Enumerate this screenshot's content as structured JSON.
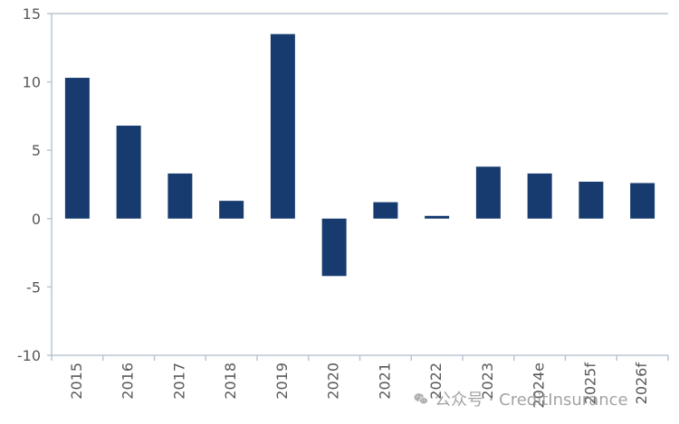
{
  "chart_data": {
    "type": "bar",
    "title": "",
    "xlabel": "",
    "ylabel": "",
    "categories": [
      "2015",
      "2016",
      "2017",
      "2018",
      "2019",
      "2020",
      "2021",
      "2022",
      "2023",
      "2024e",
      "2025f",
      "2026f"
    ],
    "values": [
      10.3,
      6.8,
      3.3,
      1.3,
      13.5,
      -4.2,
      1.2,
      0.2,
      3.8,
      3.3,
      2.7,
      2.6
    ],
    "ylim": [
      -10,
      15
    ],
    "yticks": [
      15,
      10,
      5,
      0,
      -5,
      -10
    ],
    "grid": false,
    "legend": "none",
    "bar_color": "#173b6f",
    "axis_color": "#b9c5d3",
    "tick_label_color": "#595959"
  },
  "watermark": {
    "text": "公众号 · CreditInsurance",
    "icon": "wechat-icon"
  }
}
